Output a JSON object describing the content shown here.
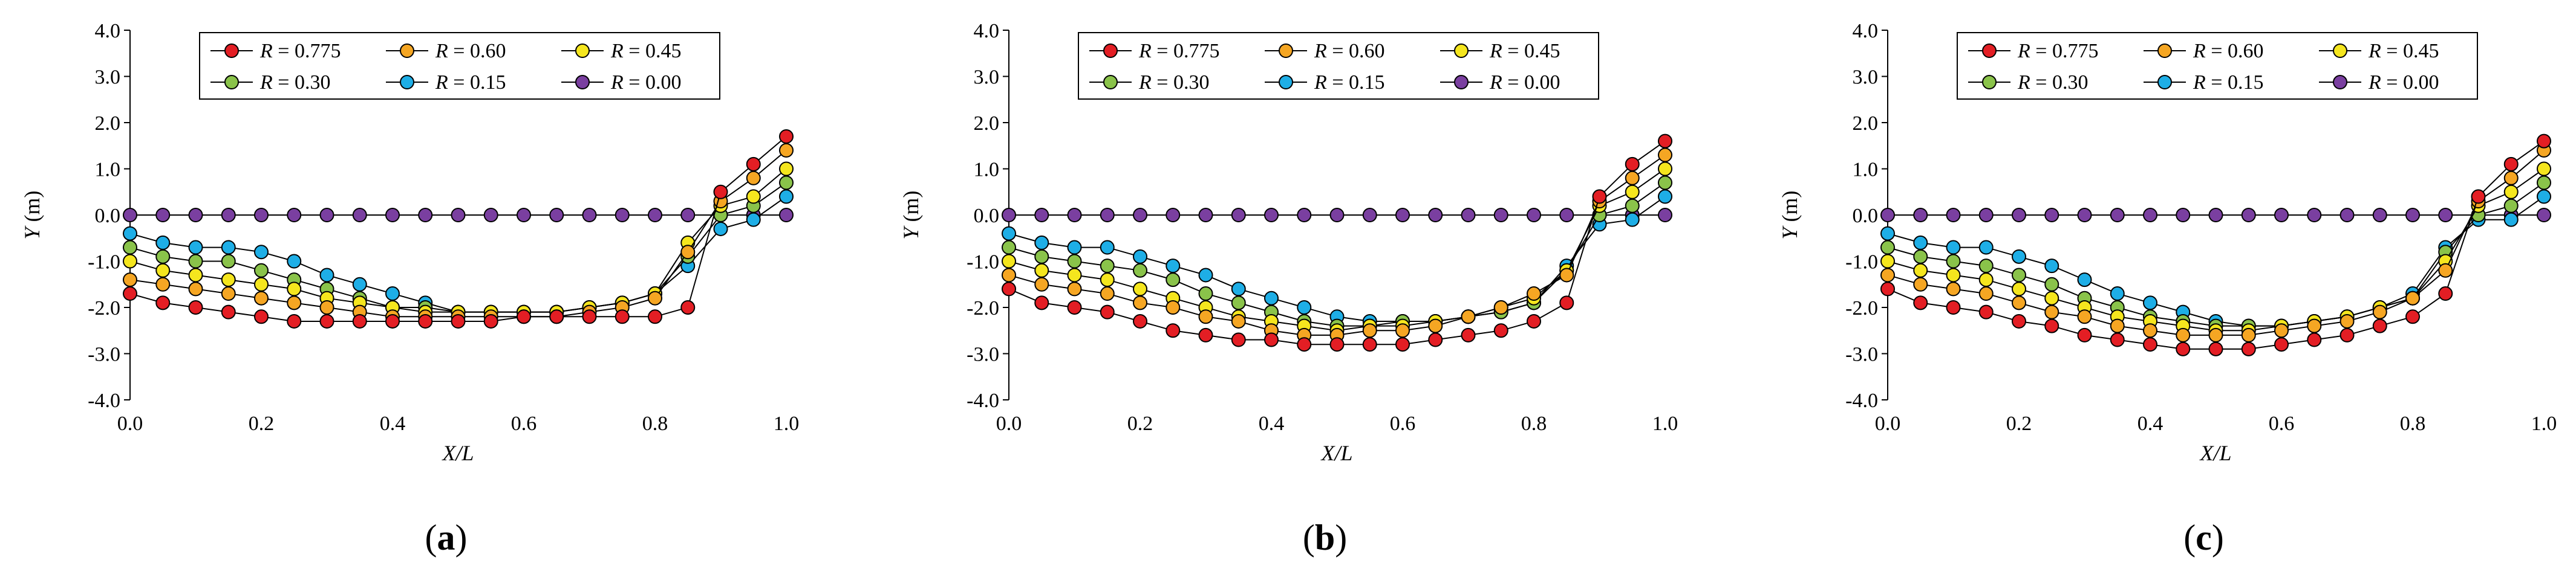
{
  "chart_data": [
    {
      "type": "line",
      "panel_label": "(a)",
      "panel_letter": "a",
      "xlabel": "X/L",
      "ylabel": "Y (m)",
      "xlim": [
        0,
        1
      ],
      "ylim": [
        -4,
        4
      ],
      "xticks": [
        "0.0",
        "0.2",
        "0.4",
        "0.6",
        "0.8",
        "1.0"
      ],
      "yticks": [
        "-4.0",
        "-3.0",
        "-2.0",
        "-1.0",
        "0.0",
        "1.0",
        "2.0",
        "3.0",
        "4.0"
      ],
      "x": [
        0,
        0.05,
        0.1,
        0.15,
        0.2,
        0.25,
        0.3,
        0.35,
        0.4,
        0.45,
        0.5,
        0.55,
        0.6,
        0.65,
        0.7,
        0.75,
        0.8,
        0.85,
        0.9,
        0.95,
        1.0
      ],
      "series": [
        {
          "name": "R = 0.775",
          "r_label": "R",
          "r_value": " = 0.775",
          "color": "#e31e24",
          "values": [
            -1.7,
            -1.9,
            -2.0,
            -2.1,
            -2.2,
            -2.3,
            -2.3,
            -2.3,
            -2.3,
            -2.3,
            -2.3,
            -2.3,
            -2.2,
            -2.2,
            -2.2,
            -2.2,
            -2.2,
            -2.0,
            0.5,
            1.1,
            1.7
          ]
        },
        {
          "name": "R = 0.60",
          "r_label": "R",
          "r_value": " = 0.60",
          "color": "#f5a623",
          "values": [
            -1.4,
            -1.5,
            -1.6,
            -1.7,
            -1.8,
            -1.9,
            -2.0,
            -2.1,
            -2.2,
            -2.2,
            -2.2,
            -2.2,
            -2.2,
            -2.2,
            -2.1,
            -2.0,
            -1.8,
            -0.8,
            0.3,
            0.8,
            1.4
          ]
        },
        {
          "name": "R = 0.45",
          "r_label": "R",
          "r_value": " = 0.45",
          "color": "#f5e61e",
          "values": [
            -1.0,
            -1.2,
            -1.3,
            -1.4,
            -1.5,
            -1.6,
            -1.8,
            -1.9,
            -2.0,
            -2.1,
            -2.1,
            -2.1,
            -2.1,
            -2.1,
            -2.0,
            -1.9,
            -1.7,
            -0.6,
            0.2,
            0.4,
            1.0
          ]
        },
        {
          "name": "R = 0.30",
          "r_label": "R",
          "r_value": " = 0.30",
          "color": "#8ac34a",
          "values": [
            -0.7,
            -0.9,
            -1.0,
            -1.0,
            -1.2,
            -1.4,
            -1.6,
            -1.8,
            -2.0,
            -2.0,
            -2.1,
            -2.1,
            -2.1,
            -2.1,
            -2.0,
            -1.9,
            -1.7,
            -0.9,
            0.0,
            0.2,
            0.7
          ]
        },
        {
          "name": "R = 0.15",
          "r_label": "R",
          "r_value": " = 0.15",
          "color": "#1eaee6",
          "values": [
            -0.4,
            -0.6,
            -0.7,
            -0.7,
            -0.8,
            -1.0,
            -1.3,
            -1.5,
            -1.7,
            -1.9,
            -2.1,
            -2.1,
            -2.1,
            -2.1,
            -2.0,
            -1.9,
            -1.7,
            -1.1,
            -0.3,
            -0.1,
            0.4
          ]
        },
        {
          "name": "R = 0.00",
          "r_label": "R",
          "r_value": " = 0.00",
          "color": "#7a3fa0",
          "values": [
            0,
            0,
            0,
            0,
            0,
            0,
            0,
            0,
            0,
            0,
            0,
            0,
            0,
            0,
            0,
            0,
            0,
            0,
            0,
            0,
            0
          ]
        }
      ]
    },
    {
      "type": "line",
      "panel_label": "(b)",
      "panel_letter": "b",
      "xlabel": "X/L",
      "ylabel": "Y (m)",
      "xlim": [
        0,
        1
      ],
      "ylim": [
        -4,
        4
      ],
      "xticks": [
        "0.0",
        "0.2",
        "0.4",
        "0.6",
        "0.8",
        "1.0"
      ],
      "yticks": [
        "-4.0",
        "-3.0",
        "-2.0",
        "-1.0",
        "0.0",
        "1.0",
        "2.0",
        "3.0",
        "4.0"
      ],
      "x": [
        0,
        0.05,
        0.1,
        0.15,
        0.2,
        0.25,
        0.3,
        0.35,
        0.4,
        0.45,
        0.5,
        0.55,
        0.6,
        0.65,
        0.7,
        0.75,
        0.8,
        0.85,
        0.9,
        0.95,
        1.0
      ],
      "series": [
        {
          "name": "R = 0.775",
          "r_label": "R",
          "r_value": " = 0.775",
          "color": "#e31e24",
          "values": [
            -1.6,
            -1.9,
            -2.0,
            -2.1,
            -2.3,
            -2.5,
            -2.6,
            -2.7,
            -2.7,
            -2.8,
            -2.8,
            -2.8,
            -2.8,
            -2.7,
            -2.6,
            -2.5,
            -2.3,
            -1.9,
            0.4,
            1.1,
            1.6
          ]
        },
        {
          "name": "R = 0.60",
          "r_label": "R",
          "r_value": " = 0.60",
          "color": "#f5a623",
          "values": [
            -1.3,
            -1.5,
            -1.6,
            -1.7,
            -1.9,
            -2.0,
            -2.2,
            -2.3,
            -2.5,
            -2.6,
            -2.6,
            -2.5,
            -2.5,
            -2.4,
            -2.2,
            -2.0,
            -1.7,
            -1.3,
            0.3,
            0.8,
            1.3
          ]
        },
        {
          "name": "R = 0.45",
          "r_label": "R",
          "r_value": " = 0.45",
          "color": "#f5e61e",
          "values": [
            -1.0,
            -1.2,
            -1.3,
            -1.4,
            -1.6,
            -1.8,
            -2.0,
            -2.2,
            -2.3,
            -2.4,
            -2.5,
            -2.4,
            -2.4,
            -2.3,
            -2.2,
            -2.0,
            -1.8,
            -1.2,
            0.2,
            0.5,
            1.0
          ]
        },
        {
          "name": "R = 0.30",
          "r_label": "R",
          "r_value": " = 0.30",
          "color": "#8ac34a",
          "values": [
            -0.7,
            -0.9,
            -1.0,
            -1.1,
            -1.2,
            -1.4,
            -1.7,
            -1.9,
            -2.1,
            -2.3,
            -2.4,
            -2.4,
            -2.3,
            -2.3,
            -2.2,
            -2.1,
            -1.9,
            -1.2,
            0.0,
            0.2,
            0.7
          ]
        },
        {
          "name": "R = 0.15",
          "r_label": "R",
          "r_value": " = 0.15",
          "color": "#1eaee6",
          "values": [
            -0.4,
            -0.6,
            -0.7,
            -0.7,
            -0.9,
            -1.1,
            -1.3,
            -1.6,
            -1.8,
            -2.0,
            -2.2,
            -2.3,
            -2.3,
            -2.3,
            -2.2,
            -2.1,
            -1.9,
            -1.1,
            -0.2,
            -0.1,
            0.4
          ]
        },
        {
          "name": "R = 0.00",
          "r_label": "R",
          "r_value": " = 0.00",
          "color": "#7a3fa0",
          "values": [
            0,
            0,
            0,
            0,
            0,
            0,
            0,
            0,
            0,
            0,
            0,
            0,
            0,
            0,
            0,
            0,
            0,
            0,
            0,
            0,
            0
          ]
        }
      ]
    },
    {
      "type": "line",
      "panel_label": "(c)",
      "panel_letter": "c",
      "xlabel": "X/L",
      "ylabel": "Y (m)",
      "xlim": [
        0,
        1
      ],
      "ylim": [
        -4,
        4
      ],
      "xticks": [
        "0.0",
        "0.2",
        "0.4",
        "0.6",
        "0.8",
        "1.0"
      ],
      "yticks": [
        "-4.0",
        "-3.0",
        "-2.0",
        "-1.0",
        "0.0",
        "1.0",
        "2.0",
        "3.0",
        "4.0"
      ],
      "x": [
        0,
        0.05,
        0.1,
        0.15,
        0.2,
        0.25,
        0.3,
        0.35,
        0.4,
        0.45,
        0.5,
        0.55,
        0.6,
        0.65,
        0.7,
        0.75,
        0.8,
        0.85,
        0.9,
        0.95,
        1.0
      ],
      "series": [
        {
          "name": "R = 0.775",
          "r_label": "R",
          "r_value": " = 0.775",
          "color": "#e31e24",
          "values": [
            -1.6,
            -1.9,
            -2.0,
            -2.1,
            -2.3,
            -2.4,
            -2.6,
            -2.7,
            -2.8,
            -2.9,
            -2.9,
            -2.9,
            -2.8,
            -2.7,
            -2.6,
            -2.4,
            -2.2,
            -1.7,
            0.4,
            1.1,
            1.6
          ]
        },
        {
          "name": "R = 0.60",
          "r_label": "R",
          "r_value": " = 0.60",
          "color": "#f5a623",
          "values": [
            -1.3,
            -1.5,
            -1.6,
            -1.7,
            -1.9,
            -2.1,
            -2.2,
            -2.4,
            -2.5,
            -2.6,
            -2.6,
            -2.6,
            -2.5,
            -2.4,
            -2.3,
            -2.1,
            -1.8,
            -1.2,
            0.3,
            0.8,
            1.4
          ]
        },
        {
          "name": "R = 0.45",
          "r_label": "R",
          "r_value": " = 0.45",
          "color": "#f5e61e",
          "values": [
            -1.0,
            -1.2,
            -1.3,
            -1.4,
            -1.6,
            -1.8,
            -2.0,
            -2.2,
            -2.3,
            -2.4,
            -2.5,
            -2.5,
            -2.4,
            -2.3,
            -2.2,
            -2.0,
            -1.8,
            -1.0,
            0.2,
            0.5,
            1.0
          ]
        },
        {
          "name": "R = 0.30",
          "r_label": "R",
          "r_value": " = 0.30",
          "color": "#8ac34a",
          "values": [
            -0.7,
            -0.9,
            -1.0,
            -1.1,
            -1.3,
            -1.5,
            -1.8,
            -2.0,
            -2.2,
            -2.3,
            -2.4,
            -2.4,
            -2.4,
            -2.3,
            -2.2,
            -2.0,
            -1.8,
            -0.8,
            0.0,
            0.2,
            0.7
          ]
        },
        {
          "name": "R = 0.15",
          "r_label": "R",
          "r_value": " = 0.15",
          "color": "#1eaee6",
          "values": [
            -0.4,
            -0.6,
            -0.7,
            -0.7,
            -0.9,
            -1.1,
            -1.4,
            -1.7,
            -1.9,
            -2.1,
            -2.3,
            -2.4,
            -2.4,
            -2.3,
            -2.2,
            -2.0,
            -1.7,
            -0.7,
            -0.1,
            -0.1,
            0.4
          ]
        },
        {
          "name": "R = 0.00",
          "r_label": "R",
          "r_value": " = 0.00",
          "color": "#7a3fa0",
          "values": [
            0,
            0,
            0,
            0,
            0,
            0,
            0,
            0,
            0,
            0,
            0,
            0,
            0,
            0,
            0,
            0,
            0,
            0,
            0,
            0,
            0
          ]
        }
      ]
    }
  ]
}
